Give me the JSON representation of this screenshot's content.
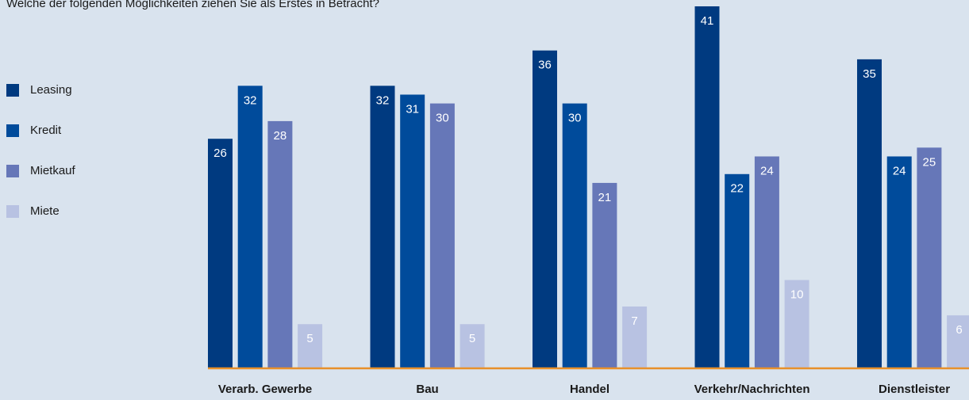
{
  "chart_data": {
    "type": "bar",
    "title": "Welche der folgenden Möglichkeiten ziehen Sie als Erstes in Betracht?",
    "categories": [
      "Verarb. Gewerbe",
      "Bau",
      "Handel",
      "Verkehr/Nachrichten",
      "Dienstleister"
    ],
    "series": [
      {
        "name": "Leasing",
        "color": "#003a80",
        "values": [
          26,
          32,
          36,
          41,
          35
        ]
      },
      {
        "name": "Kredit",
        "color": "#004b9b",
        "values": [
          32,
          31,
          30,
          22,
          24
        ]
      },
      {
        "name": "Mietkauf",
        "color": "#6677b8",
        "values": [
          28,
          30,
          21,
          24,
          25
        ]
      },
      {
        "name": "Miete",
        "color": "#b8c2e2",
        "values": [
          5,
          5,
          7,
          10,
          6
        ]
      }
    ],
    "ylim": [
      0,
      41
    ]
  }
}
